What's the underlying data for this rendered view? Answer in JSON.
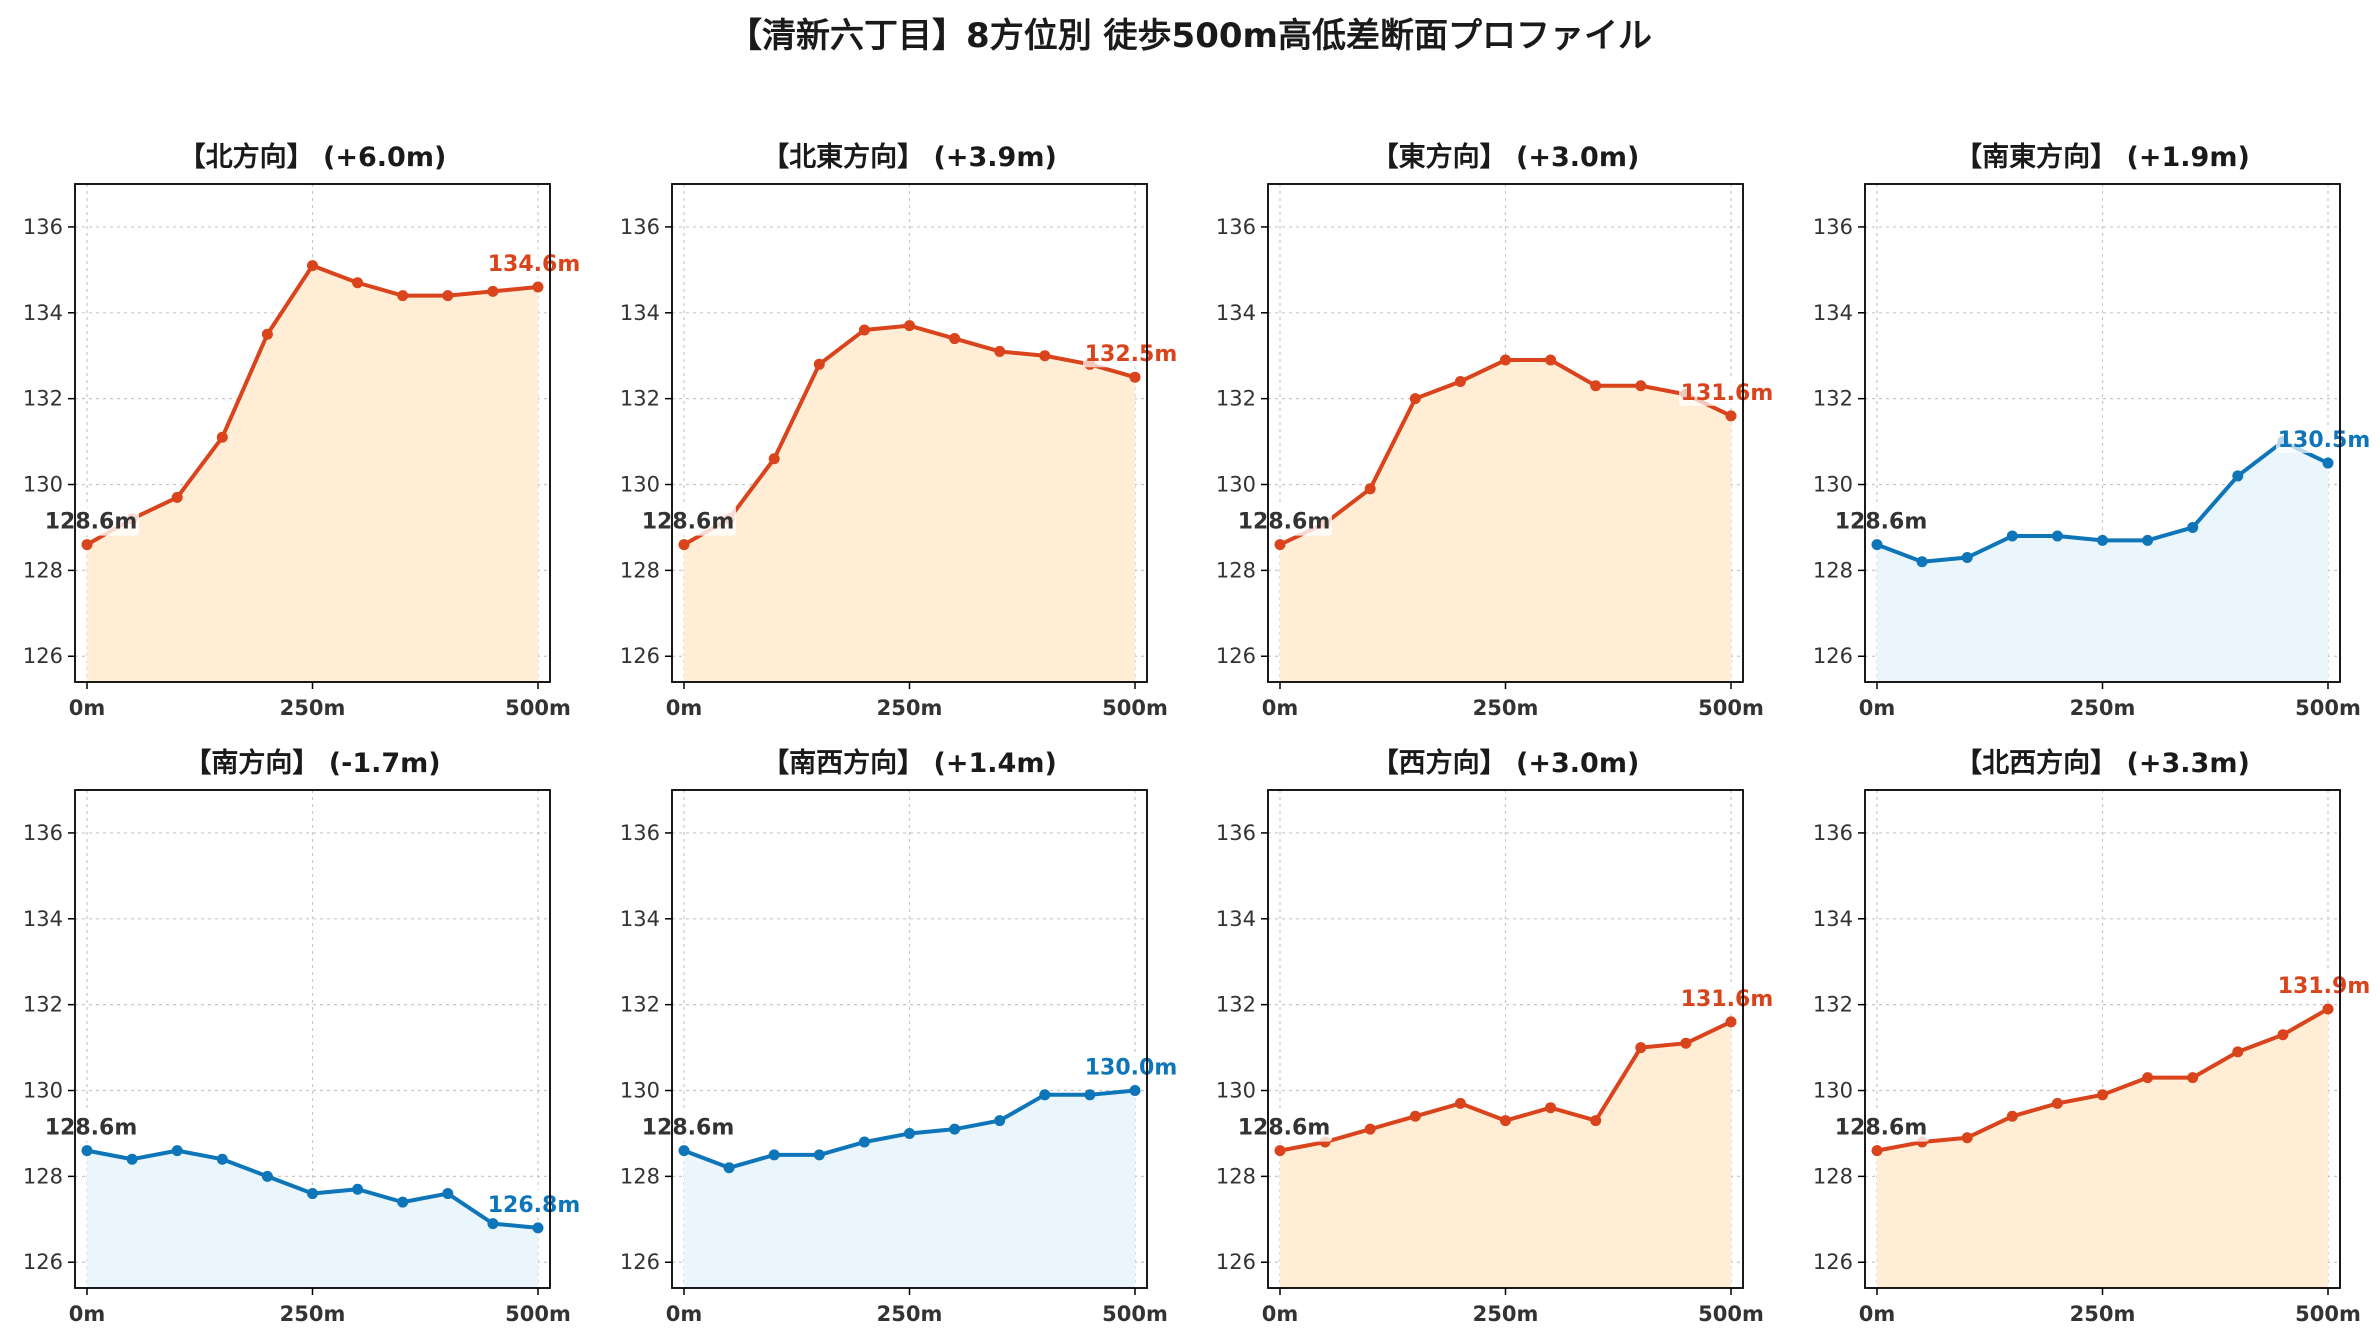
{
  "title": "【清新六丁目】8方位別 徒歩500m高低差断面プロファイル",
  "colors": {
    "up_line": "#d9441c",
    "up_fill": "#ffedd5",
    "down_line": "#0e76b8",
    "down_fill": "#eaf6fc",
    "start_label": "#333333",
    "grid": "#c8c8c8"
  },
  "chart_data": [
    {
      "type": "area",
      "title": "【北方向】 (+6.0m)",
      "trend": "up",
      "x": [
        0,
        50,
        100,
        150,
        200,
        250,
        300,
        350,
        400,
        450,
        500
      ],
      "xticks": [
        "0m",
        "250m",
        "500m"
      ],
      "yticks": [
        "126",
        "128",
        "130",
        "132",
        "134",
        "136"
      ],
      "ylim": [
        125.4,
        137
      ],
      "values": [
        128.6,
        129.2,
        129.7,
        131.1,
        133.5,
        135.1,
        134.7,
        134.4,
        134.4,
        134.5,
        134.6
      ],
      "start_label": "128.6m",
      "end_label": "134.6m"
    },
    {
      "type": "area",
      "title": "【北東方向】 (+3.9m)",
      "trend": "up",
      "x": [
        0,
        50,
        100,
        150,
        200,
        250,
        300,
        350,
        400,
        450,
        500
      ],
      "xticks": [
        "0m",
        "250m",
        "500m"
      ],
      "yticks": [
        "126",
        "128",
        "130",
        "132",
        "134",
        "136"
      ],
      "ylim": [
        125.4,
        137
      ],
      "values": [
        128.6,
        129.2,
        130.6,
        132.8,
        133.6,
        133.7,
        133.4,
        133.1,
        133.0,
        132.8,
        132.5
      ],
      "start_label": "128.6m",
      "end_label": "132.5m"
    },
    {
      "type": "area",
      "title": "【東方向】 (+3.0m)",
      "trend": "up",
      "x": [
        0,
        50,
        100,
        150,
        200,
        250,
        300,
        350,
        400,
        450,
        500
      ],
      "xticks": [
        "0m",
        "250m",
        "500m"
      ],
      "yticks": [
        "126",
        "128",
        "130",
        "132",
        "134",
        "136"
      ],
      "ylim": [
        125.4,
        137
      ],
      "values": [
        128.6,
        129.1,
        129.9,
        132.0,
        132.4,
        132.9,
        132.9,
        132.3,
        132.3,
        132.1,
        131.6
      ],
      "start_label": "128.6m",
      "end_label": "131.6m"
    },
    {
      "type": "area",
      "title": "【南東方向】 (+1.9m)",
      "trend": "down",
      "x": [
        0,
        50,
        100,
        150,
        200,
        250,
        300,
        350,
        400,
        450,
        500
      ],
      "xticks": [
        "0m",
        "250m",
        "500m"
      ],
      "yticks": [
        "126",
        "128",
        "130",
        "132",
        "134",
        "136"
      ],
      "ylim": [
        125.4,
        137
      ],
      "values": [
        128.6,
        128.2,
        128.3,
        128.8,
        128.8,
        128.7,
        128.7,
        129.0,
        130.2,
        131.0,
        130.5
      ],
      "start_label": "128.6m",
      "end_label": "130.5m"
    },
    {
      "type": "area",
      "title": "【南方向】 (-1.7m)",
      "trend": "down",
      "x": [
        0,
        50,
        100,
        150,
        200,
        250,
        300,
        350,
        400,
        450,
        500
      ],
      "xticks": [
        "0m",
        "250m",
        "500m"
      ],
      "yticks": [
        "126",
        "128",
        "130",
        "132",
        "134",
        "136"
      ],
      "ylim": [
        125.4,
        137
      ],
      "values": [
        128.6,
        128.4,
        128.6,
        128.4,
        128.0,
        127.6,
        127.7,
        127.4,
        127.6,
        126.9,
        126.8
      ],
      "start_label": "128.6m",
      "end_label": "126.8m"
    },
    {
      "type": "area",
      "title": "【南西方向】 (+1.4m)",
      "trend": "down",
      "x": [
        0,
        50,
        100,
        150,
        200,
        250,
        300,
        350,
        400,
        450,
        500
      ],
      "xticks": [
        "0m",
        "250m",
        "500m"
      ],
      "yticks": [
        "126",
        "128",
        "130",
        "132",
        "134",
        "136"
      ],
      "ylim": [
        125.4,
        137
      ],
      "values": [
        128.6,
        128.2,
        128.5,
        128.5,
        128.8,
        129.0,
        129.1,
        129.3,
        129.9,
        129.9,
        130.0
      ],
      "start_label": "128.6m",
      "end_label": "130.0m"
    },
    {
      "type": "area",
      "title": "【西方向】 (+3.0m)",
      "trend": "up",
      "x": [
        0,
        50,
        100,
        150,
        200,
        250,
        300,
        350,
        400,
        450,
        500
      ],
      "xticks": [
        "0m",
        "250m",
        "500m"
      ],
      "yticks": [
        "126",
        "128",
        "130",
        "132",
        "134",
        "136"
      ],
      "ylim": [
        125.4,
        137
      ],
      "values": [
        128.6,
        128.8,
        129.1,
        129.4,
        129.7,
        129.3,
        129.6,
        129.3,
        131.0,
        131.1,
        131.6
      ],
      "start_label": "128.6m",
      "end_label": "131.6m"
    },
    {
      "type": "area",
      "title": "【北西方向】 (+3.3m)",
      "trend": "up",
      "x": [
        0,
        50,
        100,
        150,
        200,
        250,
        300,
        350,
        400,
        450,
        500
      ],
      "xticks": [
        "0m",
        "250m",
        "500m"
      ],
      "yticks": [
        "126",
        "128",
        "130",
        "132",
        "134",
        "136"
      ],
      "ylim": [
        125.4,
        137
      ],
      "values": [
        128.6,
        128.8,
        128.9,
        129.4,
        129.7,
        129.9,
        130.3,
        130.3,
        130.9,
        131.3,
        131.9
      ],
      "start_label": "128.6m",
      "end_label": "131.9m"
    }
  ]
}
